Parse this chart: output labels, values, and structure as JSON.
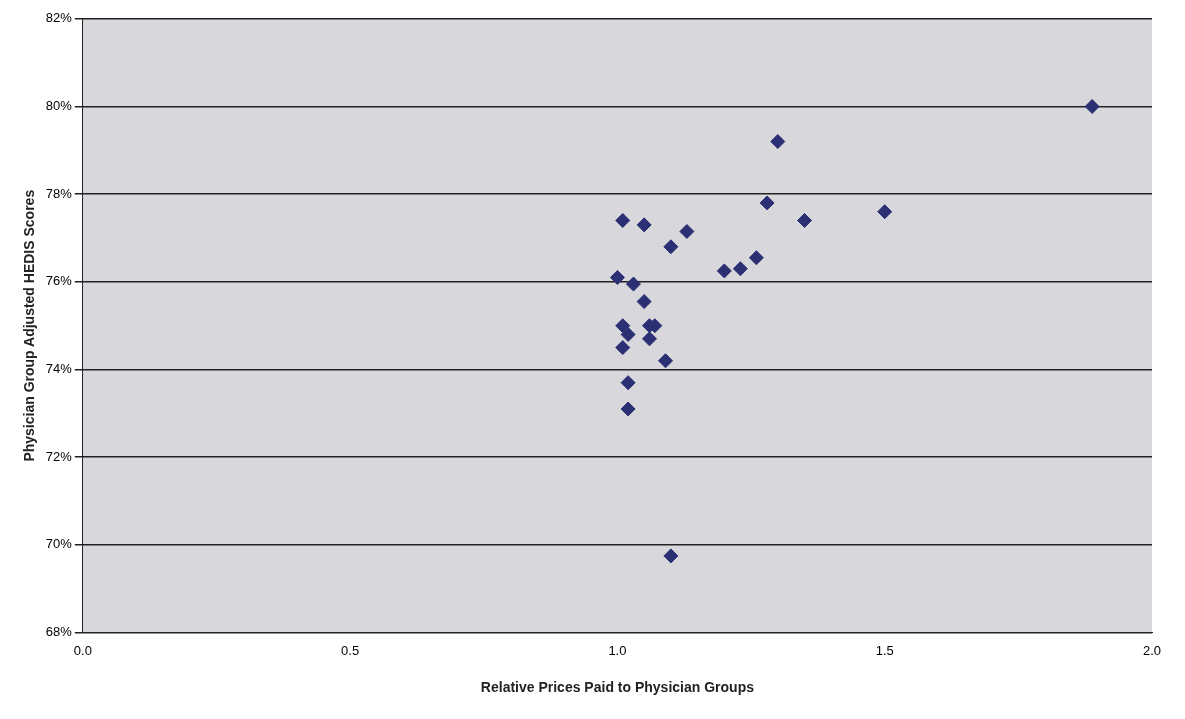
{
  "chart_data": {
    "type": "scatter",
    "xlabel": "Relative Prices Paid to Physician Groups",
    "ylabel": "Physician Group Adjusted HEDIS Scores",
    "x": [
      1.888,
      1.3,
      1.01,
      1.05,
      1.13,
      1.1,
      1.28,
      1.35,
      1.5,
      1.26,
      1.2,
      1.23,
      1.0,
      1.03,
      1.05,
      1.01,
      1.02,
      1.06,
      1.07,
      1.06,
      1.01,
      1.09,
      1.02,
      1.02,
      1.1
    ],
    "series": [
      {
        "color": "#2b2f73",
        "values": [
          80.0,
          79.2,
          77.4,
          77.3,
          77.15,
          76.8,
          77.8,
          77.4,
          77.6,
          76.55,
          76.25,
          76.3,
          76.1,
          75.95,
          75.55,
          75.0,
          74.8,
          75.0,
          75.0,
          74.7,
          74.5,
          74.2,
          73.7,
          73.1,
          69.75
        ]
      }
    ],
    "xlim": [
      0,
      2
    ],
    "xticks": [
      {
        "value": 0,
        "label": "0.0"
      },
      {
        "value": 0.5,
        "label": "0.5"
      },
      {
        "value": 1,
        "label": "1.0"
      },
      {
        "value": 1.5,
        "label": "1.5"
      },
      {
        "value": 2,
        "label": "2.0"
      }
    ],
    "ylim": [
      68,
      82
    ],
    "yticks": [
      {
        "value": 68,
        "label": "68%"
      },
      {
        "value": 70,
        "label": "70%"
      },
      {
        "value": 72,
        "label": "72%"
      },
      {
        "value": 74,
        "label": "74%"
      },
      {
        "value": 76,
        "label": "76%"
      },
      {
        "value": 78,
        "label": "78%"
      },
      {
        "value": 80,
        "label": "80%"
      },
      {
        "value": 82,
        "label": "82%"
      }
    ],
    "grid": "y",
    "legend": false,
    "marker": "diamond"
  }
}
